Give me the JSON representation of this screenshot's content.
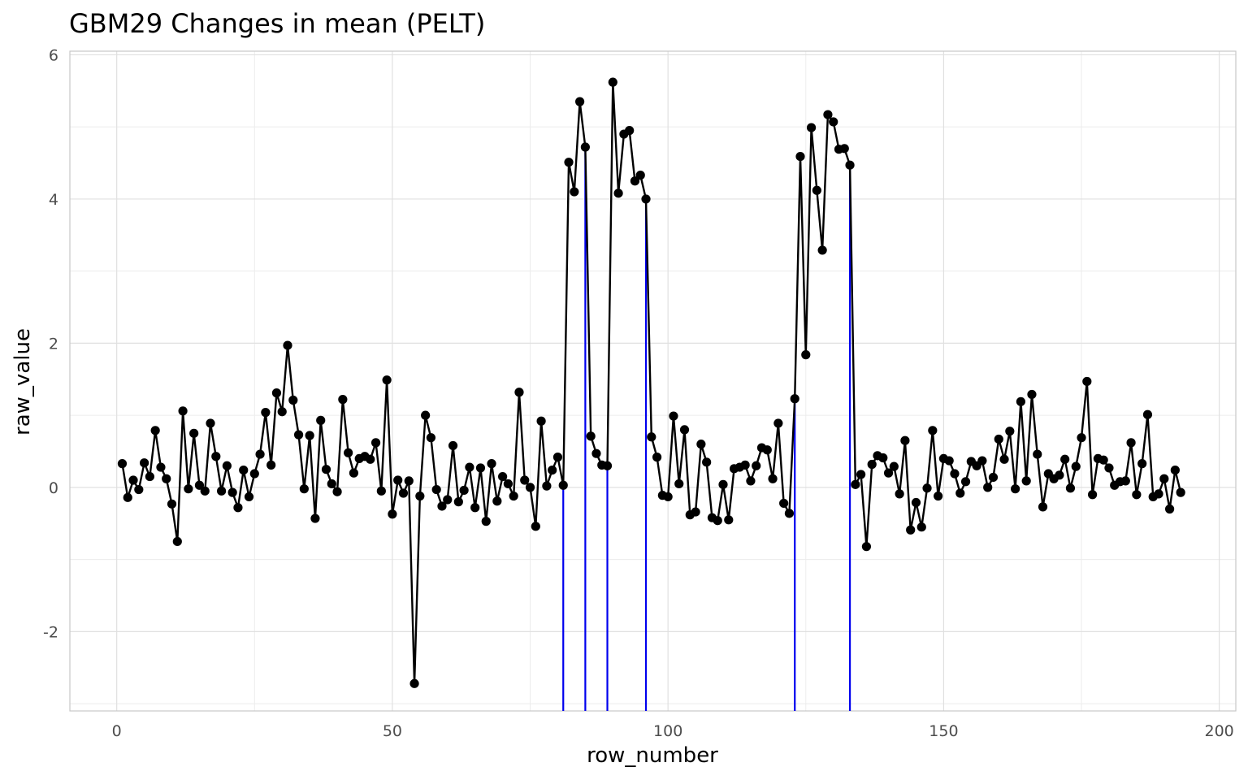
{
  "chart_data": {
    "type": "line",
    "title": "GBM29 Changes in mean (PELT)",
    "xlabel": "row_number",
    "ylabel": "raw_value",
    "xlim": [
      -8.5,
      203
    ],
    "ylim": [
      -3.1,
      6.05
    ],
    "x_ticks": [
      0,
      50,
      100,
      150,
      200
    ],
    "x_tick_labels": [
      "0",
      "50",
      "100",
      "150",
      "200"
    ],
    "y_ticks": [
      -2,
      0,
      2,
      4,
      6
    ],
    "y_tick_labels": [
      "-2",
      "0",
      "2",
      "4",
      "6"
    ],
    "grid": true,
    "legend": "none",
    "colors": {
      "series": "#000000",
      "changepoints": "#0000ee",
      "grid_major": "#e0e0e0",
      "grid_minor": "#ececec",
      "panel_border": "#c8c8c8"
    },
    "series": [
      {
        "x": [
          1,
          2,
          3,
          4,
          5,
          6,
          7,
          8,
          9,
          10,
          11,
          12,
          13,
          14,
          15,
          16,
          17,
          18,
          19,
          20,
          21,
          22,
          23,
          24,
          25,
          26,
          27,
          28,
          29,
          30,
          31,
          32,
          33,
          34,
          35,
          36,
          37,
          38,
          39,
          40,
          41,
          42,
          43,
          44,
          45,
          46,
          47,
          48,
          49,
          50,
          51,
          52,
          53,
          54,
          55,
          56,
          57,
          58,
          59,
          60,
          61,
          62,
          63,
          64,
          65,
          66,
          67,
          68,
          69,
          70,
          71,
          72,
          73,
          74,
          75,
          76,
          77,
          78,
          79,
          80,
          81,
          82,
          83,
          84,
          85,
          86,
          87,
          88,
          89,
          90,
          91,
          92,
          93,
          94,
          95,
          96,
          97,
          98,
          99,
          100,
          101,
          102,
          103,
          104,
          105,
          106,
          107,
          108,
          109,
          110,
          111,
          112,
          113,
          114,
          115,
          116,
          117,
          118,
          119,
          120,
          121,
          122,
          123,
          124,
          125,
          126,
          127,
          128,
          129,
          130,
          131,
          132,
          133,
          134,
          135,
          136,
          137,
          138,
          139,
          140,
          141,
          142,
          143,
          144,
          145,
          146,
          147,
          148,
          149,
          150,
          151,
          152,
          153,
          154,
          155,
          156,
          157,
          158,
          159,
          160,
          161,
          162,
          163,
          164,
          165,
          166,
          167,
          168,
          169,
          170,
          171,
          172,
          173,
          174,
          175,
          176,
          177,
          178,
          179,
          180,
          181,
          182,
          183,
          184,
          185,
          186,
          187,
          188,
          189,
          190,
          191,
          192,
          193
        ],
        "y": [
          0.33,
          -0.14,
          0.1,
          -0.03,
          0.34,
          0.15,
          0.79,
          0.28,
          0.12,
          -0.23,
          -0.75,
          1.06,
          -0.02,
          0.75,
          0.03,
          -0.05,
          0.89,
          0.43,
          -0.05,
          0.3,
          -0.07,
          -0.28,
          0.24,
          -0.13,
          0.19,
          0.46,
          1.04,
          0.31,
          1.31,
          1.05,
          1.97,
          1.21,
          0.73,
          -0.02,
          0.72,
          -0.43,
          0.93,
          0.25,
          0.05,
          -0.06,
          1.22,
          0.48,
          0.2,
          0.4,
          0.43,
          0.39,
          0.62,
          -0.05,
          1.49,
          -0.37,
          0.1,
          -0.08,
          0.09,
          -2.72,
          -0.12,
          1.0,
          0.69,
          -0.03,
          -0.26,
          -0.17,
          0.58,
          -0.2,
          -0.04,
          0.28,
          -0.28,
          0.27,
          -0.47,
          0.33,
          -0.19,
          0.15,
          0.05,
          -0.12,
          1.32,
          0.1,
          0.0,
          -0.54,
          0.92,
          0.02,
          0.24,
          0.42,
          0.03,
          4.51,
          4.1,
          5.35,
          4.72,
          0.71,
          0.47,
          0.31,
          0.3,
          5.62,
          4.08,
          4.9,
          4.95,
          4.25,
          4.33,
          4.0,
          0.7,
          0.42,
          -0.11,
          -0.13,
          0.99,
          0.05,
          0.8,
          -0.38,
          -0.34,
          0.6,
          0.35,
          -0.42,
          -0.46,
          0.04,
          -0.45,
          0.26,
          0.28,
          0.31,
          0.09,
          0.3,
          0.55,
          0.52,
          0.12,
          0.89,
          -0.22,
          -0.36,
          1.23,
          4.59,
          1.84,
          4.99,
          4.12,
          3.29,
          5.17,
          5.07,
          4.69,
          4.7,
          4.47,
          0.04,
          0.18,
          -0.82,
          0.32,
          0.44,
          0.41,
          0.2,
          0.29,
          -0.09,
          0.65,
          -0.59,
          -0.21,
          -0.55,
          -0.01,
          0.79,
          -0.12,
          0.4,
          0.37,
          0.19,
          -0.08,
          0.08,
          0.36,
          0.3,
          0.37,
          0.0,
          0.14,
          0.67,
          0.39,
          0.78,
          -0.02,
          1.19,
          0.09,
          1.29,
          0.46,
          -0.27,
          0.19,
          0.12,
          0.17,
          0.39,
          -0.01,
          0.29,
          0.69,
          1.47,
          -0.1,
          0.4,
          0.38,
          0.27,
          0.03,
          0.08,
          0.09,
          0.62,
          -0.1,
          0.33,
          1.01,
          -0.13,
          -0.09,
          0.12,
          -0.3,
          0.24,
          -0.07
        ]
      }
    ],
    "changepoints": [
      {
        "x": 81,
        "y": 0.03
      },
      {
        "x": 85,
        "y": 4.72
      },
      {
        "x": 89,
        "y": 0.3
      },
      {
        "x": 96,
        "y": 4.0
      },
      {
        "x": 123,
        "y": 1.23
      },
      {
        "x": 133,
        "y": 4.47
      }
    ]
  }
}
